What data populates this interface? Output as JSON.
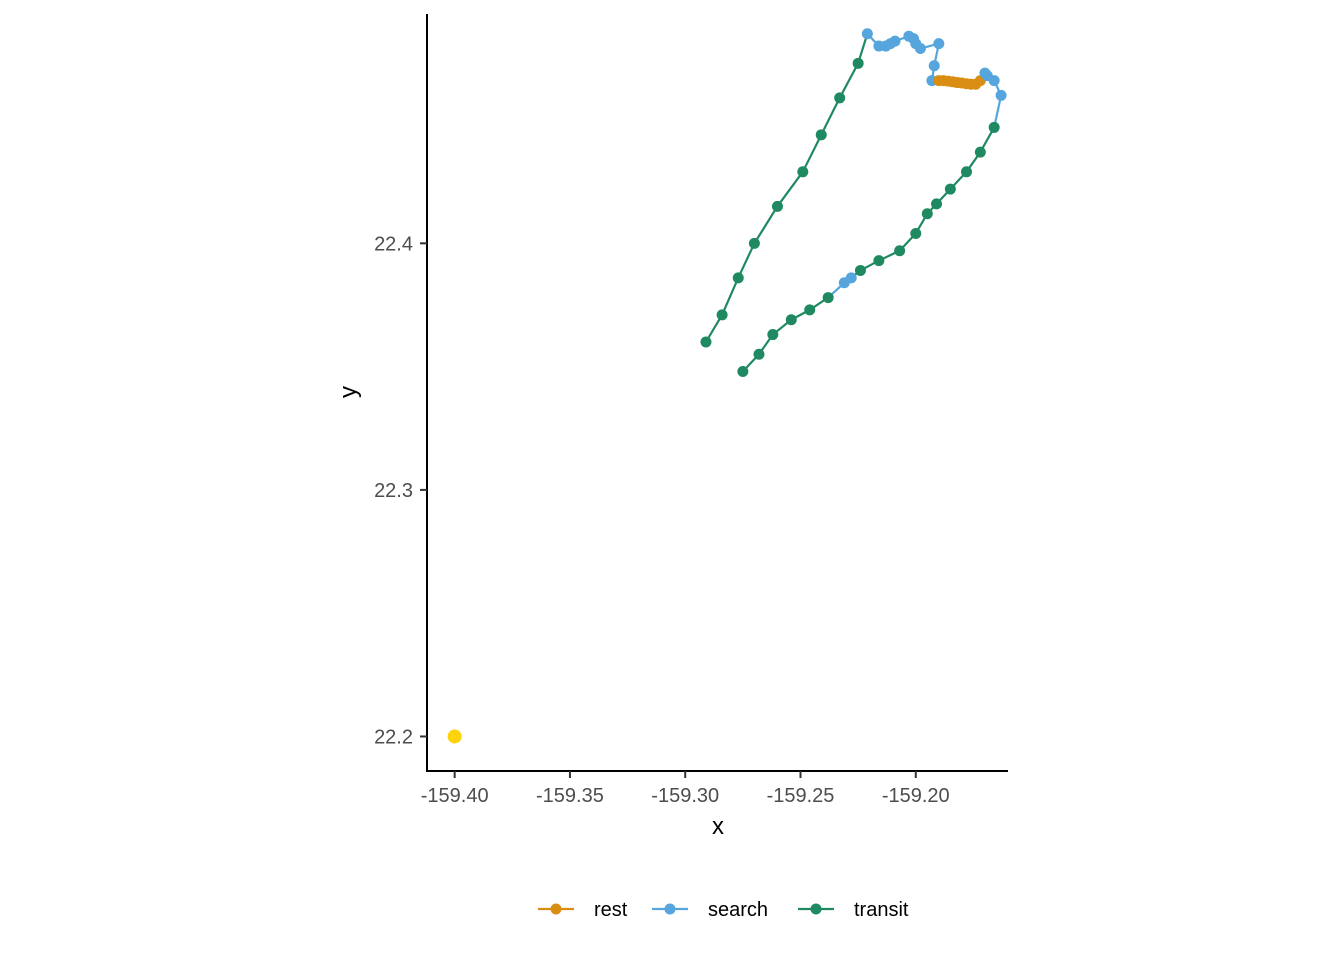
{
  "chart_data": {
    "type": "line",
    "title": "",
    "xlabel": "x",
    "ylabel": "y",
    "xlim": [
      -159.412,
      -159.16
    ],
    "ylim": [
      22.186,
      22.493
    ],
    "x_ticks": [
      -159.4,
      -159.35,
      -159.3,
      -159.25,
      -159.2
    ],
    "x_tick_labels": [
      "-159.40",
      "-159.35",
      "-159.30",
      "-159.25",
      "-159.20"
    ],
    "y_ticks": [
      22.2,
      22.3,
      22.4
    ],
    "y_tick_labels": [
      "22.2",
      "22.3",
      "22.4"
    ],
    "grid": false,
    "legend_position": "bottom",
    "colors": {
      "rest": "#D98E13",
      "search": "#56A5DD",
      "transit": "#1F8A61",
      "start": "#FFD20A"
    },
    "track": [
      {
        "x": -159.291,
        "y": 22.36,
        "state": "transit"
      },
      {
        "x": -159.284,
        "y": 22.371,
        "state": "transit"
      },
      {
        "x": -159.277,
        "y": 22.386,
        "state": "transit"
      },
      {
        "x": -159.27,
        "y": 22.4,
        "state": "transit"
      },
      {
        "x": -159.26,
        "y": 22.415,
        "state": "transit"
      },
      {
        "x": -159.249,
        "y": 22.429,
        "state": "transit"
      },
      {
        "x": -159.241,
        "y": 22.444,
        "state": "transit"
      },
      {
        "x": -159.233,
        "y": 22.459,
        "state": "transit"
      },
      {
        "x": -159.225,
        "y": 22.473,
        "state": "transit"
      },
      {
        "x": -159.221,
        "y": 22.485,
        "state": "search"
      },
      {
        "x": -159.216,
        "y": 22.48,
        "state": "search"
      },
      {
        "x": -159.213,
        "y": 22.48,
        "state": "search"
      },
      {
        "x": -159.211,
        "y": 22.481,
        "state": "search"
      },
      {
        "x": -159.209,
        "y": 22.482,
        "state": "search"
      },
      {
        "x": -159.203,
        "y": 22.484,
        "state": "search"
      },
      {
        "x": -159.201,
        "y": 22.483,
        "state": "search"
      },
      {
        "x": -159.2,
        "y": 22.481,
        "state": "search"
      },
      {
        "x": -159.198,
        "y": 22.479,
        "state": "search"
      },
      {
        "x": -159.19,
        "y": 22.481,
        "state": "search"
      },
      {
        "x": -159.192,
        "y": 22.472,
        "state": "search"
      },
      {
        "x": -159.193,
        "y": 22.466,
        "state": "search"
      },
      {
        "x": -159.19,
        "y": 22.466,
        "state": "rest"
      },
      {
        "x": -159.188,
        "y": 22.466,
        "state": "rest"
      },
      {
        "x": -159.186,
        "y": 22.4658,
        "state": "rest"
      },
      {
        "x": -159.184,
        "y": 22.4655,
        "state": "rest"
      },
      {
        "x": -159.182,
        "y": 22.4652,
        "state": "rest"
      },
      {
        "x": -159.18,
        "y": 22.465,
        "state": "rest"
      },
      {
        "x": -159.178,
        "y": 22.4647,
        "state": "rest"
      },
      {
        "x": -159.176,
        "y": 22.4645,
        "state": "rest"
      },
      {
        "x": -159.174,
        "y": 22.4645,
        "state": "rest"
      },
      {
        "x": -159.172,
        "y": 22.466,
        "state": "rest"
      },
      {
        "x": -159.17,
        "y": 22.469,
        "state": "search"
      },
      {
        "x": -159.169,
        "y": 22.468,
        "state": "search"
      },
      {
        "x": -159.166,
        "y": 22.466,
        "state": "search"
      },
      {
        "x": -159.163,
        "y": 22.46,
        "state": "search"
      },
      {
        "x": -159.166,
        "y": 22.447,
        "state": "transit"
      },
      {
        "x": -159.172,
        "y": 22.437,
        "state": "transit"
      },
      {
        "x": -159.178,
        "y": 22.429,
        "state": "transit"
      },
      {
        "x": -159.185,
        "y": 22.422,
        "state": "transit"
      },
      {
        "x": -159.191,
        "y": 22.416,
        "state": "transit"
      },
      {
        "x": -159.195,
        "y": 22.412,
        "state": "transit"
      },
      {
        "x": -159.2,
        "y": 22.404,
        "state": "transit"
      },
      {
        "x": -159.207,
        "y": 22.397,
        "state": "transit"
      },
      {
        "x": -159.216,
        "y": 22.393,
        "state": "transit"
      },
      {
        "x": -159.224,
        "y": 22.389,
        "state": "transit"
      },
      {
        "x": -159.228,
        "y": 22.386,
        "state": "search"
      },
      {
        "x": -159.231,
        "y": 22.384,
        "state": "search"
      },
      {
        "x": -159.238,
        "y": 22.378,
        "state": "transit"
      },
      {
        "x": -159.246,
        "y": 22.373,
        "state": "transit"
      },
      {
        "x": -159.254,
        "y": 22.369,
        "state": "transit"
      },
      {
        "x": -159.262,
        "y": 22.363,
        "state": "transit"
      },
      {
        "x": -159.268,
        "y": 22.355,
        "state": "transit"
      },
      {
        "x": -159.275,
        "y": 22.348,
        "state": "transit"
      }
    ],
    "start_point": {
      "x": -159.4,
      "y": 22.2
    },
    "series": [
      {
        "name": "rest"
      },
      {
        "name": "search"
      },
      {
        "name": "transit"
      }
    ]
  }
}
